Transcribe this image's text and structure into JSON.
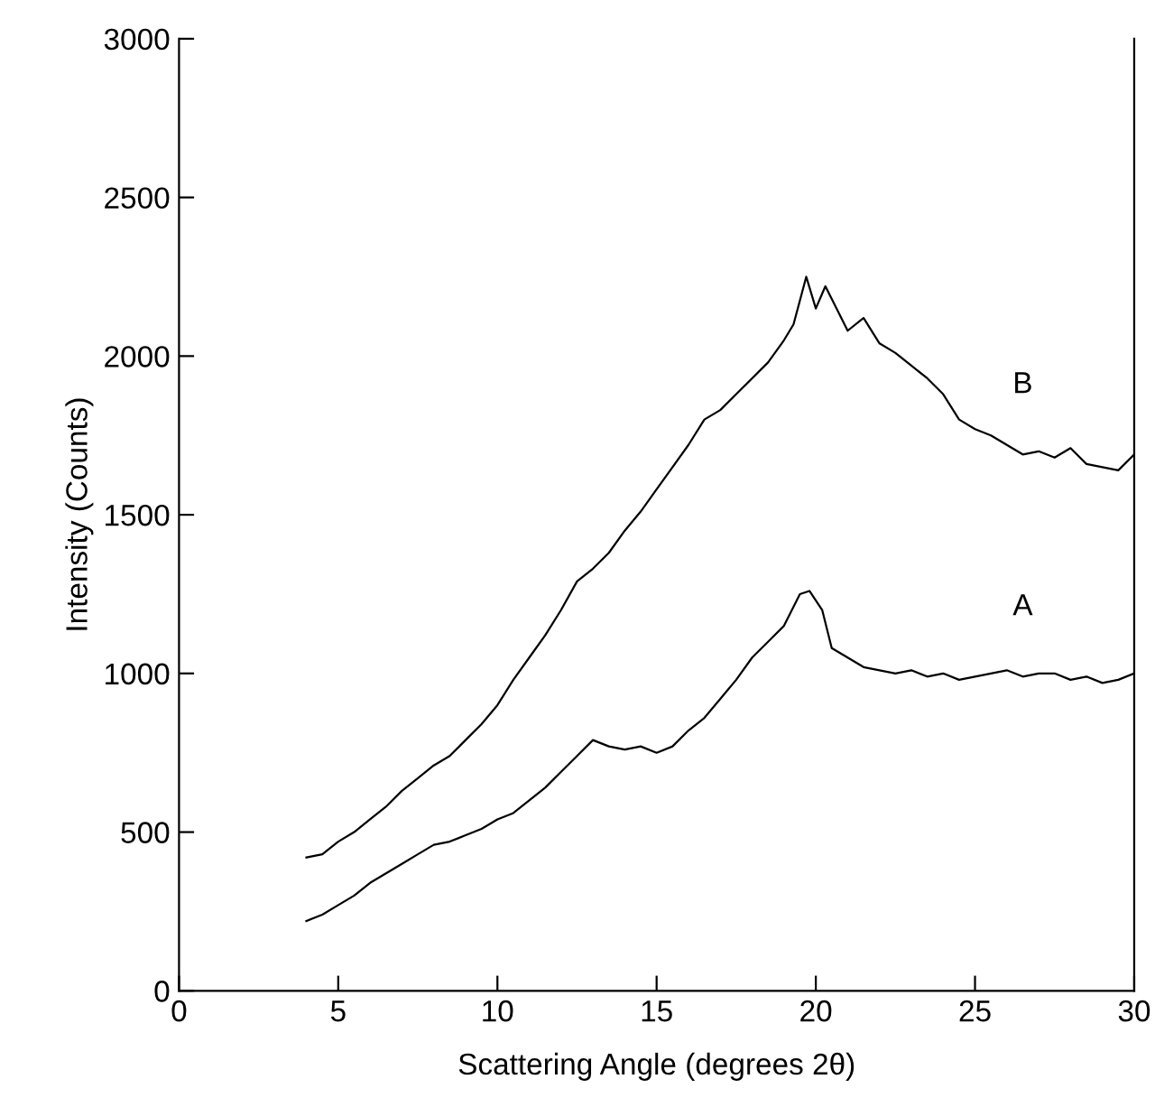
{
  "chart_data": {
    "type": "line",
    "xlabel": "Scattering Angle (degrees 2θ)",
    "ylabel": "Intensity (Counts)",
    "xlim": [
      0,
      30
    ],
    "xticks": [
      0,
      5,
      10,
      15,
      20,
      25,
      30
    ],
    "ylim": [
      0,
      3000
    ],
    "yticks": [
      0,
      500,
      1000,
      1500,
      2000,
      2500,
      3000
    ],
    "grid": false,
    "series": [
      {
        "name": "B",
        "color": "#000000",
        "x": [
          4,
          4.5,
          5,
          5.5,
          6,
          6.5,
          7,
          7.5,
          8,
          8.5,
          9,
          9.5,
          10,
          10.5,
          11,
          11.5,
          12,
          12.5,
          13,
          13.5,
          14,
          14.5,
          15,
          15.5,
          16,
          16.5,
          17,
          17.5,
          18,
          18.5,
          19,
          19.3,
          19.7,
          20,
          20.3,
          20.5,
          21,
          21.5,
          22,
          22.5,
          23,
          23.5,
          24,
          24.5,
          25,
          25.5,
          26,
          26.5,
          27,
          27.5,
          28,
          28.5,
          29,
          29.5,
          30
        ],
        "values": [
          420,
          430,
          470,
          500,
          540,
          580,
          630,
          670,
          710,
          740,
          790,
          840,
          900,
          980,
          1050,
          1120,
          1200,
          1290,
          1330,
          1380,
          1450,
          1510,
          1580,
          1650,
          1720,
          1800,
          1830,
          1880,
          1930,
          1980,
          2050,
          2100,
          2250,
          2150,
          2220,
          2180,
          2080,
          2120,
          2040,
          2010,
          1970,
          1930,
          1880,
          1800,
          1770,
          1750,
          1720,
          1690,
          1700,
          1680,
          1710,
          1660,
          1650,
          1640,
          1690
        ]
      },
      {
        "name": "A",
        "color": "#000000",
        "x": [
          4,
          4.5,
          5,
          5.5,
          6,
          6.5,
          7,
          7.5,
          8,
          8.5,
          9,
          9.5,
          10,
          10.5,
          11,
          11.5,
          12,
          12.5,
          13,
          13.5,
          14,
          14.5,
          15,
          15.5,
          16,
          16.5,
          17,
          17.5,
          18,
          18.5,
          19,
          19.5,
          19.8,
          20.2,
          20.5,
          21,
          21.5,
          22,
          22.5,
          23,
          23.5,
          24,
          24.5,
          25,
          25.5,
          26,
          26.5,
          27,
          27.5,
          28,
          28.5,
          29,
          29.5,
          30
        ],
        "values": [
          220,
          240,
          270,
          300,
          340,
          370,
          400,
          430,
          460,
          470,
          490,
          510,
          540,
          560,
          600,
          640,
          690,
          740,
          790,
          770,
          760,
          770,
          750,
          770,
          820,
          860,
          920,
          980,
          1050,
          1100,
          1150,
          1250,
          1260,
          1200,
          1080,
          1050,
          1020,
          1010,
          1000,
          1010,
          990,
          1000,
          980,
          990,
          1000,
          1010,
          990,
          1000,
          1000,
          980,
          990,
          970,
          980,
          1000
        ]
      }
    ]
  }
}
